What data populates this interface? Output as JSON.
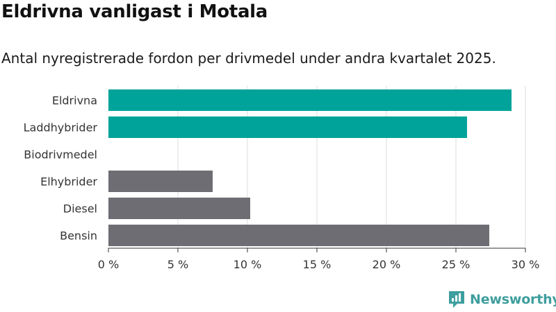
{
  "header": {
    "title": "Eldrivna vanligast i Motala",
    "subtitle": "Antal nyregistrerade fordon per drivmedel under andra kvartalet 2025."
  },
  "brand": {
    "name": "Newsworthy",
    "logo_icon": "newsworthy-logo-icon",
    "color": "#3f9e9e"
  },
  "chart_data": {
    "type": "bar",
    "orientation": "horizontal",
    "categories": [
      "Eldrivna",
      "Laddhybrider",
      "Biodrivmedel",
      "Elhybrider",
      "Diesel",
      "Bensin"
    ],
    "values": [
      29.0,
      25.8,
      0,
      7.5,
      10.2,
      27.4
    ],
    "bar_colors": [
      "#00a39a",
      "#00a39a",
      "#00a39a",
      "#6e6d73",
      "#6e6d73",
      "#6e6d73"
    ],
    "xlim": [
      0,
      30
    ],
    "xticks": [
      0,
      5,
      10,
      15,
      20,
      25,
      30
    ],
    "xtick_labels": [
      "0 %",
      "5 %",
      "10 %",
      "15 %",
      "20 %",
      "25 %",
      "30 %"
    ],
    "grid": true,
    "xlabel": "",
    "ylabel": ""
  }
}
